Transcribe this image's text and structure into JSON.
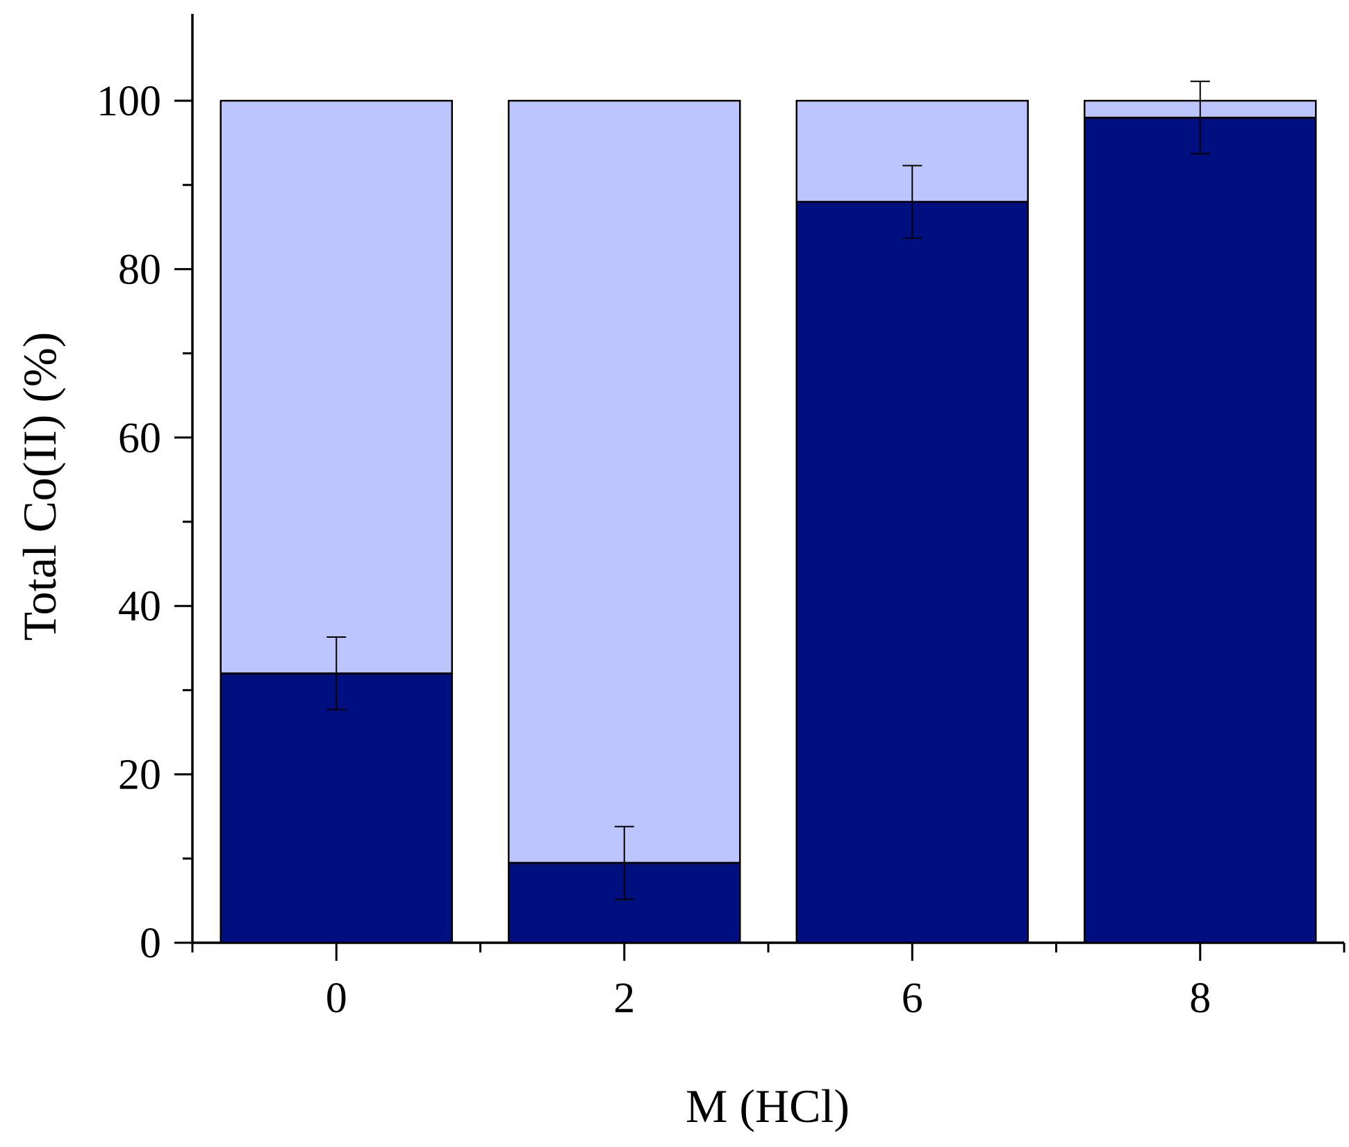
{
  "chart_data": {
    "type": "bar",
    "stacked": true,
    "title": "",
    "xlabel": "M (HCl)",
    "ylabel": "Total Co(II) (%)",
    "categories": [
      "0",
      "2",
      "6",
      "8"
    ],
    "ylim": [
      0,
      110
    ],
    "yticks": [
      0,
      20,
      40,
      60,
      80,
      100
    ],
    "grid": false,
    "legend": "none",
    "series": [
      {
        "values": [
          32,
          9.5,
          88,
          98
        ],
        "color": "#000f7f",
        "error": [
          4.3,
          4.3,
          4.3,
          4.3
        ]
      },
      {
        "values": [
          68,
          90.5,
          12,
          2
        ],
        "color": "#bcc5fd"
      }
    ]
  }
}
